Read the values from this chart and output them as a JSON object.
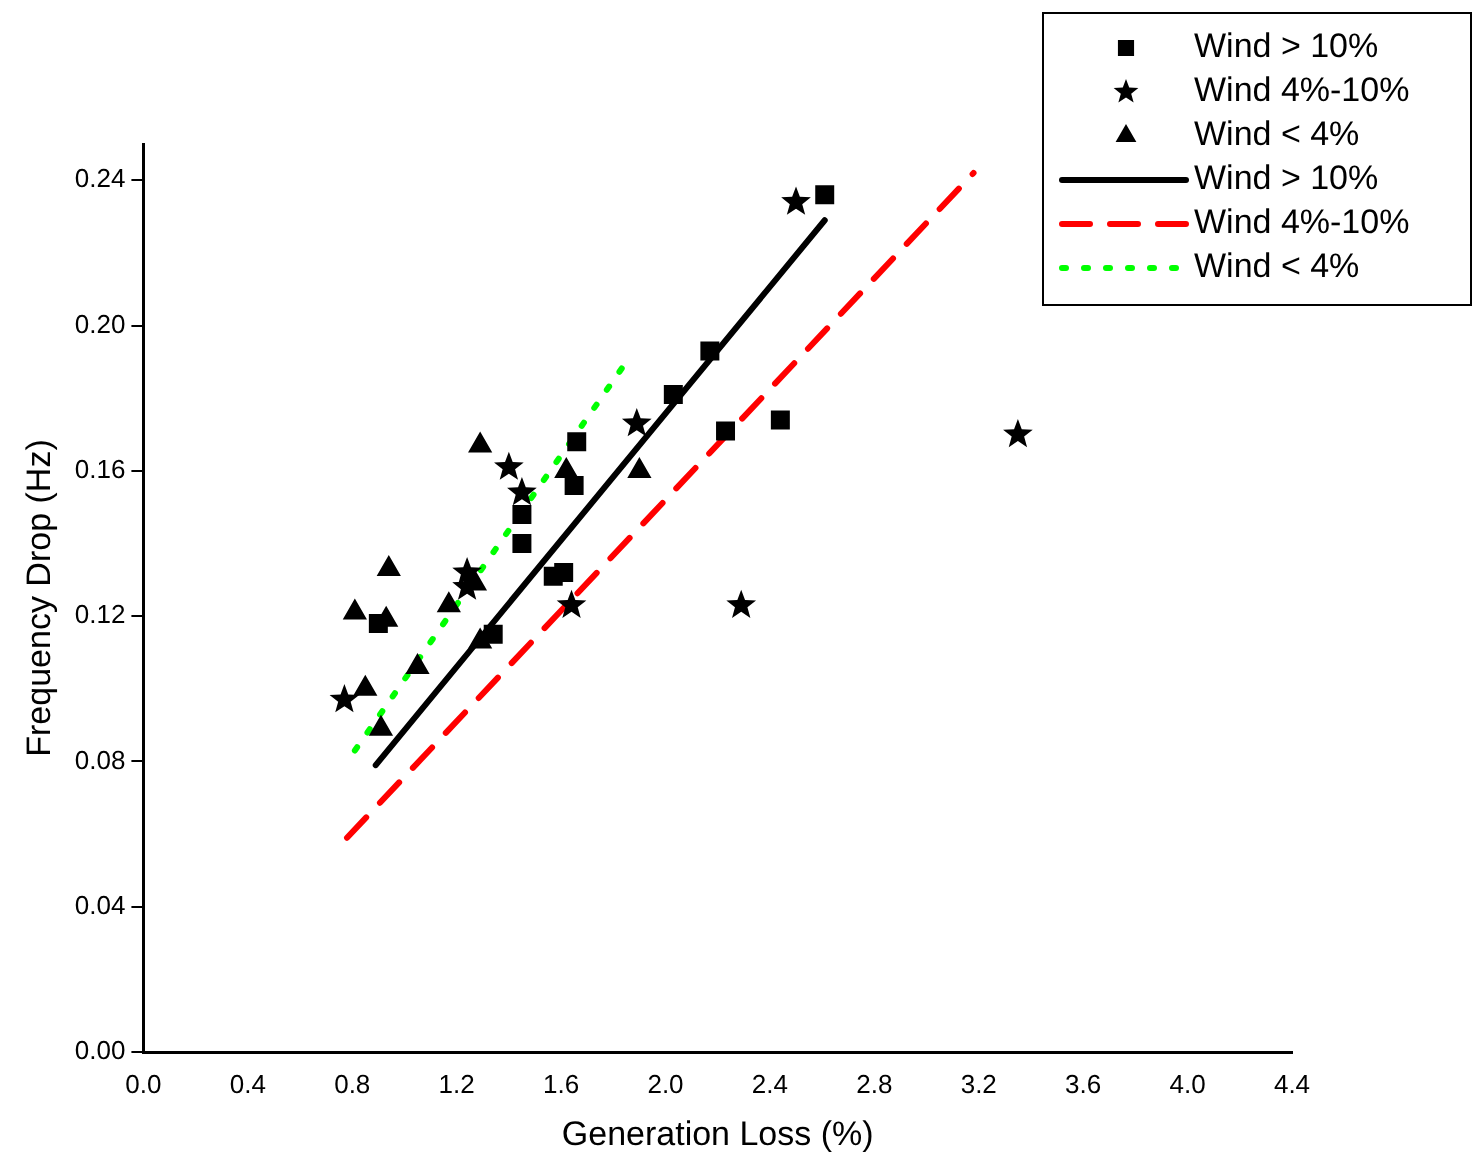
{
  "chart_data": {
    "type": "scatter",
    "xlabel": "Generation Loss (%)",
    "ylabel": "Frequency Drop (Hz)",
    "xlim": [
      0,
      4.4
    ],
    "xticks": [
      {
        "value": 0,
        "label": "0.0"
      },
      0.4,
      0.8,
      1.2,
      1.6,
      {
        "value": 2,
        "label": "2.0"
      },
      2.4,
      2.8,
      3.2,
      3.6,
      {
        "value": 4,
        "label": "4.0"
      },
      4.4
    ],
    "ylim": [
      0,
      0.25
    ],
    "yticks": [
      {
        "value": 0,
        "label": "0.00"
      },
      0.04,
      0.08,
      0.12,
      0.16,
      {
        "value": 0.2,
        "label": "0.20"
      },
      0.24
    ],
    "grid": false,
    "legend": "top right",
    "series": [
      {
        "type": "scatter",
        "name": "Wind > 10%",
        "color": "#000000",
        "marker": "square",
        "x": [
          0.9,
          1.34,
          1.45,
          1.45,
          1.57,
          1.61,
          1.65,
          1.66,
          2.03,
          2.17,
          2.23,
          2.44,
          2.61
        ],
        "values": [
          0.118,
          0.115,
          0.148,
          0.14,
          0.131,
          0.132,
          0.156,
          0.168,
          0.181,
          0.193,
          0.171,
          0.174,
          0.236
        ]
      },
      {
        "type": "scatter",
        "name": "Wind 4%-10%",
        "color": "#000000",
        "marker": "star",
        "x": [
          0.77,
          1.24,
          1.24,
          1.4,
          1.45,
          1.64,
          1.89,
          2.29,
          2.5,
          3.35
        ],
        "values": [
          0.097,
          0.132,
          0.128,
          0.161,
          0.154,
          0.123,
          0.173,
          0.123,
          0.234,
          0.17
        ]
      },
      {
        "type": "scatter",
        "name": "Wind < 4%",
        "color": "#000000",
        "marker": "triangle",
        "x": [
          0.81,
          0.93,
          0.94,
          0.85,
          0.91,
          1.05,
          1.17,
          1.27,
          1.29,
          1.29,
          1.62,
          1.9
        ],
        "values": [
          0.121,
          0.119,
          0.133,
          0.1,
          0.089,
          0.106,
          0.123,
          0.129,
          0.113,
          0.167,
          0.16,
          0.16
        ]
      },
      {
        "type": "line",
        "name": "Wind > 10%",
        "color": "#000000",
        "line_style": "solid",
        "marker": "none",
        "x": [
          0.89,
          2.61
        ],
        "values": [
          0.079,
          0.229
        ]
      },
      {
        "type": "line",
        "name": "Wind 4%-10%",
        "color": "#ff0000",
        "line_style": "dashed",
        "marker": "none",
        "x": [
          0.78,
          3.18
        ],
        "values": [
          0.059,
          0.242
        ]
      },
      {
        "type": "line",
        "name": "Wind < 4%",
        "color": "#00ff00",
        "line_style": "dotted",
        "marker": "none",
        "x": [
          0.81,
          1.85
        ],
        "values": [
          0.083,
          0.19
        ]
      }
    ]
  }
}
